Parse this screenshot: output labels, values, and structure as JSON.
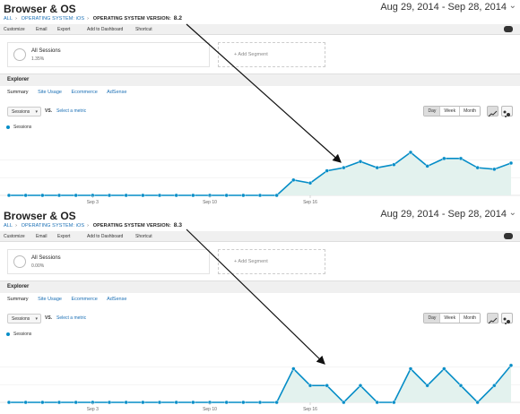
{
  "panels": [
    {
      "title": "Browser & OS",
      "date_range": "Aug 29, 2014 - Sep 28, 2014",
      "breadcrumb": {
        "all": "ALL",
        "dimension": "OPERATING SYSTEM: iOS",
        "current": "OPERATING SYSTEM VERSION:",
        "value": "8.2"
      },
      "toolbar": [
        "Customize",
        "Email",
        "Export",
        "Add to Dashboard",
        "Shortcut"
      ],
      "segment": {
        "name": "All Sessions",
        "pct": "1.35%"
      },
      "add_segment": "+ Add Segment",
      "explorer": "Explorer",
      "subtabs": [
        "Summary",
        "Site Usage",
        "Ecommerce",
        "AdSense"
      ],
      "metric": "Sessions",
      "vs": "VS.",
      "select_metric": "Select a metric",
      "periods": [
        "Day",
        "Week",
        "Month"
      ],
      "legend": "Sessions",
      "chart_data": {
        "type": "area",
        "x_ticks": [
          "Sep 3",
          "Sep 10",
          "Sep 16"
        ],
        "values": [
          0,
          0,
          0,
          0,
          0,
          0,
          0,
          0,
          0,
          0,
          0,
          0,
          0,
          0,
          0,
          0,
          0,
          1,
          0.8,
          1.6,
          1.8,
          2.2,
          1.8,
          2.0,
          2.8,
          1.9,
          2.4,
          2.4,
          1.8,
          1.7,
          2.1
        ],
        "ylim": [
          0,
          3.5
        ],
        "color": "#058dc7",
        "fill": "#e3f2ee"
      }
    },
    {
      "title": "Browser & OS",
      "date_range": "Aug 29, 2014 - Sep 28, 2014",
      "breadcrumb": {
        "all": "ALL",
        "dimension": "OPERATING SYSTEM: iOS",
        "current": "OPERATING SYSTEM VERSION:",
        "value": "8.3"
      },
      "toolbar": [
        "Customize",
        "Email",
        "Export",
        "Add to Dashboard",
        "Shortcut"
      ],
      "segment": {
        "name": "All Sessions",
        "pct": "0.00%"
      },
      "add_segment": "+ Add Segment",
      "explorer": "Explorer",
      "subtabs": [
        "Summary",
        "Site Usage",
        "Ecommerce",
        "AdSense"
      ],
      "metric": "Sessions",
      "vs": "VS.",
      "select_metric": "Select a metric",
      "periods": [
        "Day",
        "Week",
        "Month"
      ],
      "legend": "Sessions",
      "chart_data": {
        "type": "area",
        "x_ticks": [
          "Sep 3",
          "Sep 10",
          "Sep 16"
        ],
        "values": [
          0,
          0,
          0,
          0,
          0,
          0,
          0,
          0,
          0,
          0,
          0,
          0,
          0,
          0,
          0,
          0,
          0,
          1,
          0.5,
          0.5,
          0,
          0.5,
          0,
          0,
          1,
          0.5,
          1,
          0.5,
          0,
          0.5,
          1.1
        ],
        "ylim": [
          0,
          1.6
        ],
        "color": "#058dc7",
        "fill": "#e3f2ee"
      }
    }
  ],
  "arrows_color": "#111111"
}
